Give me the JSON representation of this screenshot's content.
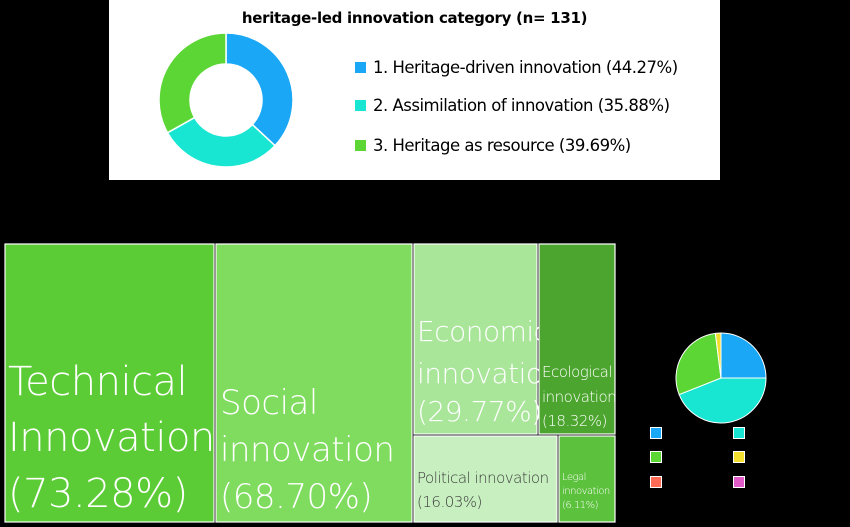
{
  "chart_data": [
    {
      "type": "pie",
      "title": "heritage-led innovation category (n= 131)",
      "categories": [
        "1. Heritage-driven innovation (44.27%)",
        "2. Assimilation of innovation (35.88%)",
        "3. Heritage as resource (39.69%)"
      ],
      "values": [
        44.27,
        35.88,
        39.69
      ],
      "colors": [
        "#1aa7f5",
        "#18e6d2",
        "#5cd634"
      ],
      "legend": "right"
    },
    {
      "type": "treemap",
      "categories": [
        "Technical Innovation",
        "Social innovation",
        "Economic innovation",
        "Ecological innovation",
        "Political innovation",
        "Legal innovation"
      ],
      "values": [
        73.28,
        68.7,
        29.77,
        18.32,
        16.03,
        6.11
      ],
      "labels": [
        [
          "Technical",
          "Innovation",
          "(73.28%)"
        ],
        [
          "Social",
          "innovation",
          "(68.70%)"
        ],
        [
          "Economic",
          "innovation",
          "(29.77%)"
        ],
        [
          "Ecological",
          "innovation",
          "(18.32%)"
        ],
        [
          "Political innovation",
          "(16.03%)"
        ],
        [
          "Legal",
          "innovation",
          "(6.11%)"
        ]
      ],
      "colors": [
        "#5ccc36",
        "#7fdc5f",
        "#a9e69a",
        "#4ca52e",
        "#c7efbf",
        "#5cc13d"
      ]
    },
    {
      "type": "pie",
      "values": [
        25,
        44,
        29,
        2
      ],
      "colors": [
        "#1aa7f5",
        "#18e6d2",
        "#5cd634",
        "#f2de2e"
      ],
      "legend_colors": [
        "#1aa7f5",
        "#18e6d2",
        "#5cd634",
        "#f2de2e",
        "#ff6b55",
        "#e05ac8"
      ]
    }
  ]
}
